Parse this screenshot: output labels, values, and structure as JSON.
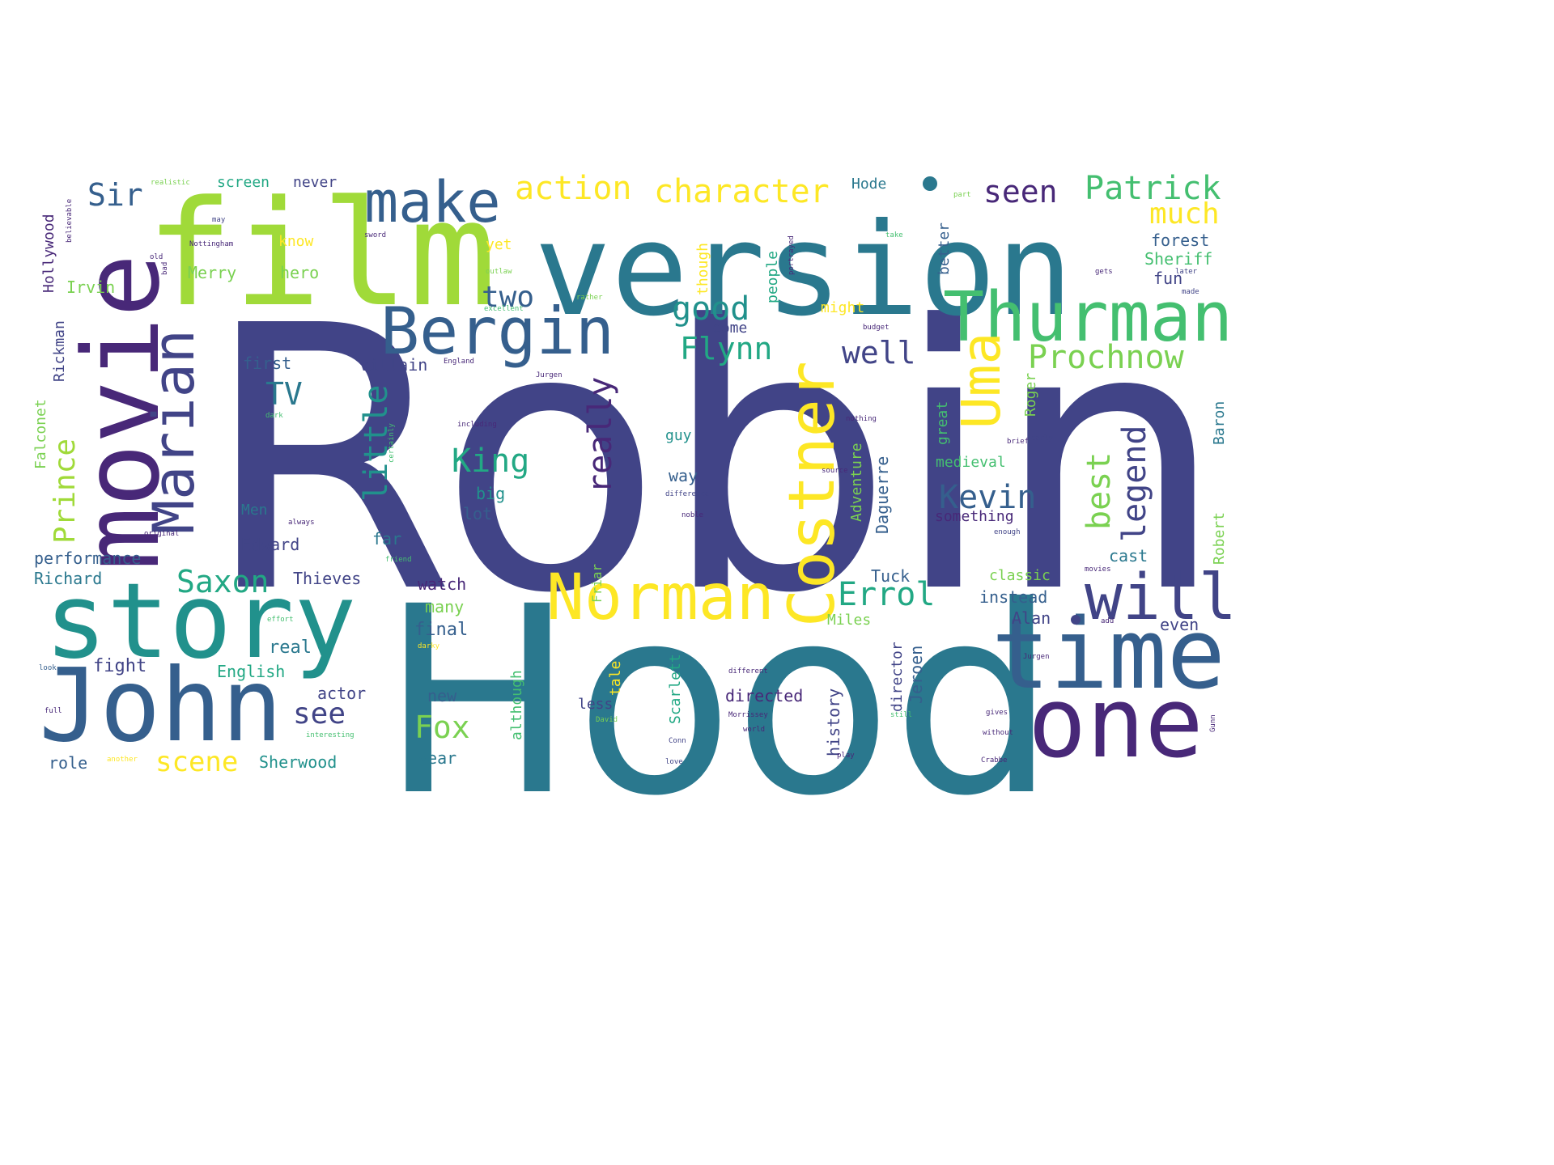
{
  "words": [
    "Robin",
    "Hood",
    "version",
    "film",
    "movie",
    "story",
    "John",
    "time",
    "one",
    "Thurman",
    "Bergin",
    "Costner",
    "Norman",
    "will",
    "Marian",
    "make",
    "Uma",
    "Prochnow",
    "character",
    "action",
    "Patrick",
    "seen",
    "much",
    "Kevin",
    "legend",
    "best",
    "really",
    "Errol",
    "Flynn",
    "good",
    "well",
    "King",
    "little",
    "Saxon",
    "Fox",
    "scene",
    "Sir",
    "two",
    "TV",
    "Prince",
    "see",
    "Sherwood",
    "Thieves",
    "final",
    "watch",
    "many",
    "year",
    "new",
    "actor",
    "real",
    "fight",
    "role",
    "English",
    "Richard",
    "performance",
    "Edward",
    "far",
    "lot",
    "big",
    "Men",
    "first",
    "villain",
    "Irvin",
    "hero",
    "Merry",
    "screen",
    "never",
    "know",
    "yet",
    "Hode",
    "forest",
    "Sheriff",
    "fun",
    "cast",
    "even",
    "Alan",
    "instead",
    "classic",
    "Tuck",
    "Miles",
    "directed",
    "less",
    "way",
    "guy",
    "come",
    "might",
    "medieval",
    "something",
    "history",
    "Jeroen",
    "director",
    "tale",
    "Scarlett",
    "although",
    "Adventure",
    "Daguerre",
    "great",
    "Roger",
    "Robert",
    "Baron",
    "people",
    "though",
    "better",
    "Hollywood",
    "Rickman",
    "Falconet",
    "Friar"
  ],
  "small_words": [
    "realistic",
    "sword",
    "may",
    "old",
    "bad",
    "Nottingham",
    "outlaw",
    "excellent",
    "Jurgen",
    "England",
    "dark",
    "including",
    "rather",
    "budget",
    "nothing",
    "certainly",
    "source",
    "difference",
    "noble",
    "always",
    "original",
    "friend",
    "effort",
    "darky",
    "look",
    "full",
    "interesting",
    "another",
    "David",
    "Morrissey",
    "world",
    "Conn",
    "love",
    "different",
    "still",
    "gives",
    "without",
    "Crabbe",
    "Gunn",
    "play",
    "brief",
    "early",
    "enough",
    "movies",
    "add",
    "take",
    "gets",
    "later",
    "made",
    "part",
    "portrayed",
    "believable",
    "Jurgen"
  ],
  "colors": {
    "dark_blue": "#414487",
    "teal": "#2a788e",
    "blue": "#355f8d",
    "purple": "#482878",
    "green": "#22a884",
    "lime": "#a0da39",
    "light_green": "#44bf70",
    "yellow": "#fde725",
    "mint": "#7ad151"
  }
}
